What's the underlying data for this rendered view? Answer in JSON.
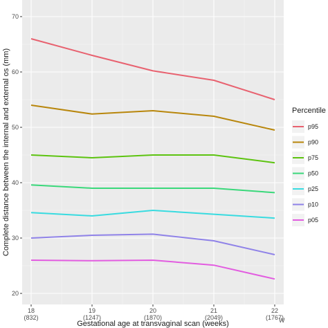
{
  "chart_data": {
    "type": "line",
    "xlabel": "Gestational age at transvaginal scan (weeks)",
    "ylabel": "Complete distance between the internal and external os (mm)",
    "x": [
      18,
      19,
      20,
      21,
      22
    ],
    "x_tick_labels": [
      {
        "week": "18",
        "n": "(832)"
      },
      {
        "week": "19",
        "n": "(1247)"
      },
      {
        "week": "20",
        "n": "(1870)"
      },
      {
        "week": "21",
        "n": "(2049)"
      },
      {
        "week": "22",
        "n": "(1767)"
      }
    ],
    "y_ticks": [
      20,
      30,
      40,
      50,
      60,
      70
    ],
    "ylim": [
      18,
      73
    ],
    "xlim": [
      18,
      22
    ],
    "grid": true,
    "legend_title": "Percentile",
    "legend_position": "right",
    "series": [
      {
        "name": "p95",
        "color": "#e8616f",
        "values": [
          66,
          63,
          60.2,
          58.5,
          55
        ]
      },
      {
        "name": "p90",
        "color": "#b8860b",
        "values": [
          54,
          52.4,
          53,
          52,
          49.5
        ]
      },
      {
        "name": "p75",
        "color": "#5cc30f",
        "values": [
          45,
          44.5,
          45,
          45,
          43.6
        ]
      },
      {
        "name": "p50",
        "color": "#39d87a",
        "values": [
          39.6,
          39,
          39,
          39,
          38.2
        ]
      },
      {
        "name": "p25",
        "color": "#38dbe0",
        "values": [
          34.6,
          34,
          35,
          34.3,
          33.6
        ]
      },
      {
        "name": "p10",
        "color": "#8f82e8",
        "values": [
          30,
          30.5,
          30.7,
          29.5,
          27
        ]
      },
      {
        "name": "p05",
        "color": "#e25ce0",
        "values": [
          26,
          25.9,
          26,
          25.1,
          22.6
        ]
      }
    ],
    "corner_mark": "W"
  }
}
